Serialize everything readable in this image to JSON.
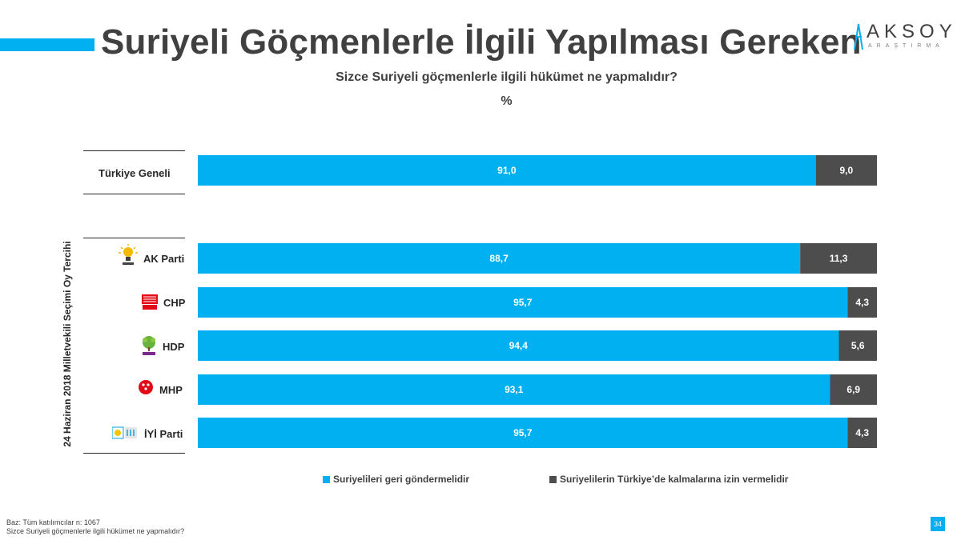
{
  "header": {
    "title": "Suriyeli Göçmenlerle İlgili Yapılması Gereken",
    "logo_main": "AKSOY",
    "logo_sub": "ARAŞTIRMA"
  },
  "subtitle": "Sizce Suriyeli göçmenlerle ilgili hükümet ne yapmalıdır?",
  "unit": "%",
  "vertical_label": "24 Haziran 2018 Milletvekili Seçimi Oy Tercihi",
  "colors": {
    "accent": "#00b0f0",
    "dark": "#404040",
    "blue_series": "#00b0f0",
    "gray_series": "#4d4d4d"
  },
  "chart_data": {
    "type": "bar",
    "orientation": "horizontal",
    "stacked": true,
    "percent": true,
    "categories": [
      "Türkiye Geneli",
      "AK Parti",
      "CHP",
      "HDP",
      "MHP",
      "İYİ Parti"
    ],
    "series": [
      {
        "name": "Suriyelileri geri göndermelidir",
        "values": [
          91.0,
          88.7,
          95.7,
          94.4,
          93.1,
          95.7
        ],
        "labels": [
          "91,0",
          "88,7",
          "95,7",
          "94,4",
          "93,1",
          "95,7"
        ],
        "color": "#00b0f0"
      },
      {
        "name": "Suriyelilerin Türkiye’de kalmalarına izin vermelidir",
        "values": [
          9.0,
          11.3,
          4.3,
          5.6,
          6.9,
          4.3
        ],
        "labels": [
          "9,0",
          "11,3",
          "4,3",
          "5,6",
          "6,9",
          "4,3"
        ],
        "color": "#4d4d4d"
      }
    ],
    "xlim": [
      0,
      100
    ],
    "legend_position": "bottom"
  },
  "party_icons": [
    "ak-parti-logo-icon",
    "chp-logo-icon",
    "hdp-logo-icon",
    "mhp-logo-icon",
    "iyi-parti-logo-icon"
  ],
  "footer": {
    "base": "Baz: Tüm katılımcılar n: 1067",
    "question": "Sizce Suriyeli göçmenlerle ilgili hükümet ne yapmalıdır?",
    "page_number": "34"
  }
}
